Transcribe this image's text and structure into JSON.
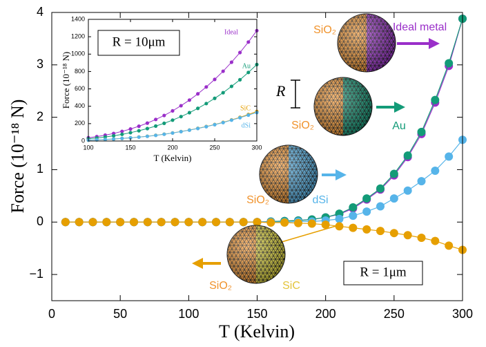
{
  "chart_data": [
    {
      "type": "line",
      "x_label": "T (Kelvin)",
      "y_label": "Force (10⁻¹⁸ N)",
      "x": [
        10,
        20,
        30,
        40,
        50,
        60,
        70,
        80,
        90,
        100,
        110,
        120,
        130,
        140,
        150,
        160,
        170,
        180,
        190,
        200,
        210,
        220,
        230,
        240,
        250,
        260,
        270,
        280,
        290,
        300
      ],
      "xlim": [
        0,
        300
      ],
      "xticks": [
        0,
        50,
        100,
        150,
        200,
        250,
        300
      ],
      "ylim": [
        -1.5,
        4
      ],
      "yticks": [
        {
          "value": -1,
          "label": "−1"
        },
        0,
        1,
        2,
        3,
        4
      ],
      "series": [
        {
          "name": "Ideal metal",
          "color": "#9a2fc9",
          "values": [
            0,
            0,
            0,
            0,
            0,
            0,
            0,
            0,
            0,
            0,
            0,
            0,
            0,
            0,
            0,
            0.01,
            0.02,
            0.03,
            0.05,
            0.09,
            0.15,
            0.26,
            0.43,
            0.62,
            0.89,
            1.24,
            1.68,
            2.28,
            2.98,
            3.88
          ]
        },
        {
          "name": "Au",
          "color": "#139b78",
          "values": [
            0,
            0,
            0,
            0,
            0,
            0,
            0,
            0,
            0,
            0,
            0,
            0,
            0,
            0,
            0,
            0.01,
            0.02,
            0.03,
            0.05,
            0.09,
            0.16,
            0.28,
            0.45,
            0.64,
            0.92,
            1.27,
            1.72,
            2.33,
            3.03,
            3.88
          ]
        },
        {
          "name": "dSi",
          "color": "#56b4e9",
          "values": [
            0,
            0,
            0,
            0,
            0,
            0,
            0,
            0,
            0,
            0,
            0,
            0,
            0,
            0,
            0,
            0,
            0,
            0.01,
            0.01,
            0.03,
            0.06,
            0.12,
            0.2,
            0.3,
            0.45,
            0.6,
            0.78,
            0.98,
            1.25,
            1.57
          ]
        },
        {
          "name": "SiC",
          "color": "#e69f00",
          "values": [
            0,
            0,
            0,
            0,
            0,
            0,
            0,
            0,
            0,
            0,
            0,
            0,
            0,
            0,
            0,
            -0.01,
            -0.01,
            -0.02,
            -0.03,
            -0.05,
            -0.08,
            -0.11,
            -0.14,
            -0.17,
            -0.21,
            -0.25,
            -0.3,
            -0.36,
            -0.45,
            -0.53
          ]
        }
      ]
    },
    {
      "type": "line",
      "x_label": "T (Kelvin)",
      "y_label": "Force (10⁻¹⁸ N)",
      "x": [
        100,
        110,
        120,
        130,
        140,
        150,
        160,
        170,
        180,
        190,
        200,
        210,
        220,
        230,
        240,
        250,
        260,
        270,
        280,
        290,
        300
      ],
      "xlim": [
        100,
        300
      ],
      "xticks": [
        100,
        150,
        200,
        250,
        300
      ],
      "ylim": [
        0,
        1400
      ],
      "yticks": [
        0,
        200,
        400,
        600,
        800,
        1000,
        1200,
        1400
      ],
      "series": [
        {
          "name": "Ideal",
          "color": "#9a2fc9",
          "values": [
            38,
            51,
            68,
            87,
            111,
            138,
            170,
            206,
            248,
            294,
            347,
            406,
            471,
            543,
            622,
            709,
            803,
            907,
            1018,
            1139,
            1270
          ]
        },
        {
          "name": "Au",
          "color": "#139b78",
          "values": [
            26,
            35,
            47,
            60,
            77,
            96,
            118,
            143,
            172,
            204,
            240,
            281,
            326,
            376,
            431,
            491,
            556,
            629,
            705,
            789,
            880
          ]
        },
        {
          "name": "SiC",
          "color": "#e69f00",
          "values": [
            10,
            14,
            18,
            23,
            30,
            37,
            46,
            55,
            66,
            79,
            93,
            109,
            126,
            146,
            167,
            190,
            215,
            243,
            273,
            305,
            340
          ]
        },
        {
          "name": "dSi",
          "color": "#56b4e9",
          "values": [
            10,
            14,
            18,
            23,
            30,
            37,
            45,
            54,
            65,
            78,
            92,
            108,
            125,
            144,
            165,
            188,
            212,
            240,
            268,
            298,
            328
          ]
        }
      ]
    }
  ],
  "annotations": {
    "main_radius": "R = 1μm",
    "inset_radius": "R = 10μm",
    "scale_bar": "R",
    "substrate_labels": [
      "SiO₂",
      "SiO₂",
      "SiO₂",
      "SiO₂"
    ]
  }
}
